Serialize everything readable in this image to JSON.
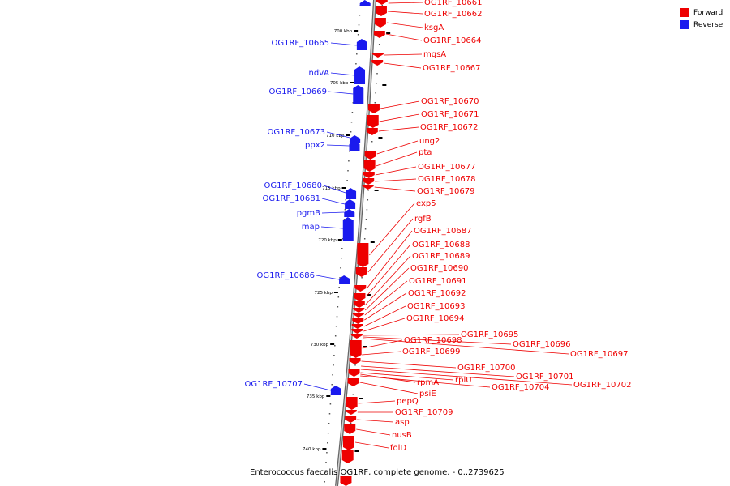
{
  "colors": {
    "forward": "#ee0000",
    "reverse": "#1a1aee",
    "backbone": "#888888"
  },
  "legend": [
    {
      "label": "Forward",
      "color": "#ee0000"
    },
    {
      "label": "Reverse",
      "color": "#1a1aee"
    }
  ],
  "caption": "Enterococcus faecalis OG1RF, complete genome. - 0..2739625",
  "ticks": [
    "700 kbp",
    "705 kbp",
    "710 kbp",
    "715 kbp",
    "720 kbp",
    "725 kbp",
    "730 kbp",
    "735 kbp",
    "740 kbp"
  ],
  "genes_forward": [
    "OG1RF_10661",
    "OG1RF_10662",
    "ksgA",
    "OG1RF_10664",
    "mgsA",
    "OG1RF_10667",
    "OG1RF_10670",
    "OG1RF_10671",
    "OG1RF_10672",
    "ung2",
    "pta",
    "OG1RF_10677",
    "OG1RF_10678",
    "OG1RF_10679",
    "exp5",
    "rgfB",
    "OG1RF_10687",
    "OG1RF_10688",
    "OG1RF_10689",
    "OG1RF_10690",
    "OG1RF_10691",
    "OG1RF_10692",
    "OG1RF_10693",
    "OG1RF_10694",
    "OG1RF_10695",
    "OG1RF_10696",
    "OG1RF_10697",
    "OG1RF_10698",
    "OG1RF_10699",
    "OG1RF_10700",
    "OG1RF_10701",
    "OG1RF_10702",
    "rplU",
    "rpmA",
    "OG1RF_10704",
    "psiE",
    "pepQ",
    "OG1RF_10709",
    "asp",
    "nusB",
    "folD"
  ],
  "genes_reverse": [
    "OG1RF_10665",
    "ndvA",
    "OG1RF_10669",
    "OG1RF_10673",
    "ppx2",
    "OG1RF_10680",
    "OG1RF_10681",
    "pgmB",
    "map",
    "OG1RF_10686",
    "OG1RF_10707"
  ]
}
